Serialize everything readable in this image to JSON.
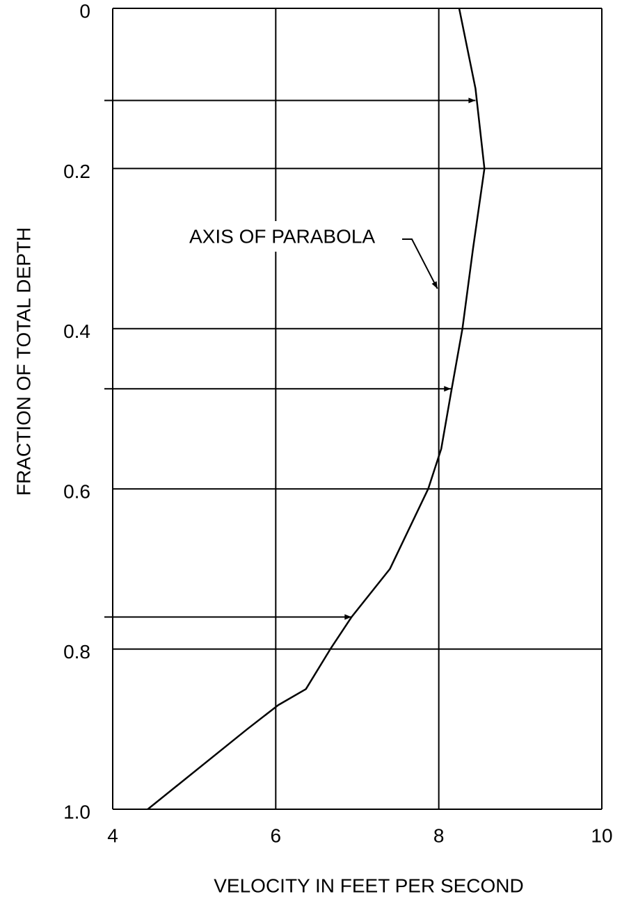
{
  "chart_data": {
    "type": "line",
    "xlabel": "VELOCITY IN FEET PER SECOND",
    "ylabel": "FRACTION OF TOTAL DEPTH",
    "x": [
      8.25,
      8.45,
      8.56,
      8.42,
      8.29,
      8.15,
      8.03,
      7.87,
      7.4,
      6.93,
      6.67,
      6.37,
      6.03,
      5.65,
      4.43
    ],
    "values": [
      0,
      0.1,
      0.2,
      0.3,
      0.4,
      0.48,
      0.55,
      0.6,
      0.7,
      0.76,
      0.8,
      0.85,
      0.87,
      0.9,
      1.0
    ],
    "color": "#000000",
    "xlim": [
      4,
      10
    ],
    "xticks": [
      4,
      6,
      8,
      10
    ],
    "ylim": [
      1,
      0
    ],
    "yticks": [
      0,
      0.2,
      0.4,
      0.6,
      0.8,
      {
        "value": 1,
        "label": "1.0"
      }
    ],
    "grid": true,
    "arrows": [
      {
        "depth": 0.115,
        "velocity": 8.45
      },
      {
        "depth": 0.475,
        "velocity": 8.15
      },
      {
        "depth": 0.76,
        "velocity": 6.93
      }
    ],
    "annotation": {
      "text": "AXIS OF PARABOLA",
      "velocity": 8.0,
      "depth": 0.35
    }
  }
}
